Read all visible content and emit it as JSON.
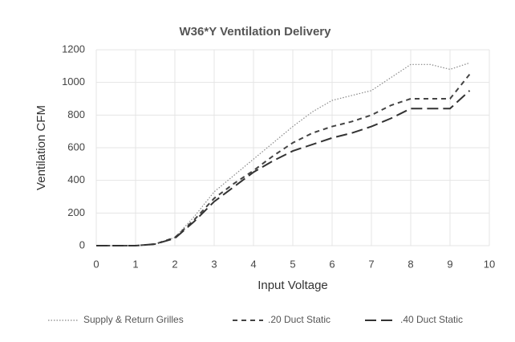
{
  "chart_data": {
    "type": "line",
    "title": "W36*Y Ventilation Delivery",
    "x_label": "Input Voltage",
    "y_label": "Ventilation CFM",
    "x": [
      0,
      0.5,
      1,
      1.5,
      2,
      2.5,
      3,
      3.5,
      4,
      4.5,
      5,
      5.5,
      6,
      6.5,
      7,
      7.5,
      8,
      8.5,
      9,
      9.5
    ],
    "series": [
      {
        "name": "Supply & Return Grilles",
        "color": "#888888",
        "dash": "dotted",
        "values": [
          0,
          0,
          0,
          10,
          50,
          180,
          330,
          430,
          530,
          630,
          730,
          820,
          890,
          920,
          950,
          1030,
          1110,
          1110,
          1080,
          1120
        ]
      },
      {
        "name": ".20 Duct Static",
        "color": "#444444",
        "dash": "short",
        "values": [
          0,
          0,
          0,
          10,
          50,
          160,
          290,
          380,
          460,
          550,
          630,
          690,
          730,
          760,
          800,
          860,
          900,
          900,
          900,
          1050
        ]
      },
      {
        "name": ".40 Duct Static",
        "color": "#333333",
        "dash": "long",
        "values": [
          0,
          0,
          0,
          10,
          45,
          150,
          270,
          360,
          450,
          520,
          580,
          620,
          660,
          690,
          730,
          780,
          840,
          840,
          840,
          950
        ]
      }
    ],
    "xlim": [
      0,
      10
    ],
    "xticks": [
      0,
      1,
      2,
      3,
      4,
      5,
      6,
      7,
      8,
      9,
      10
    ],
    "ylim": [
      0,
      1200
    ],
    "yticks": [
      0,
      200,
      400,
      600,
      800,
      1000,
      1200
    ],
    "grid": true,
    "legend": "bottom"
  }
}
